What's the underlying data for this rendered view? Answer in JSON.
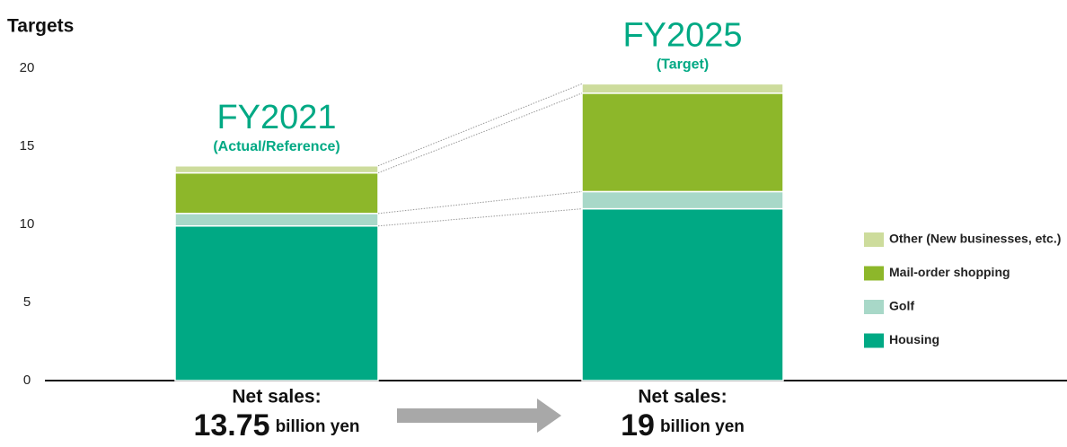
{
  "chart_data": {
    "type": "stacked-bar",
    "title": "Targets",
    "categories": [
      "FY2021",
      "FY2025"
    ],
    "category_notes": [
      "(Actual/Reference)",
      "(Target)"
    ],
    "series": [
      {
        "name": "Housing",
        "color": "#00a984",
        "values": [
          9.9,
          11
        ]
      },
      {
        "name": "Golf",
        "color": "#a8d8c8",
        "values": [
          0.8,
          1.1
        ]
      },
      {
        "name": "Mail-order shopping",
        "color": "#8db72a",
        "values": [
          2.6,
          6.3
        ]
      },
      {
        "name": "Other (New businesses, etc.)",
        "color": "#cddc9c",
        "values": [
          0.45,
          0.6
        ]
      }
    ],
    "totals_label": "Net sales:",
    "totals": [
      13.75,
      19
    ],
    "totals_unit": "billion yen",
    "ylim": [
      0,
      20
    ],
    "yticks": [
      0,
      5,
      10,
      15,
      20
    ],
    "legend": "right"
  }
}
